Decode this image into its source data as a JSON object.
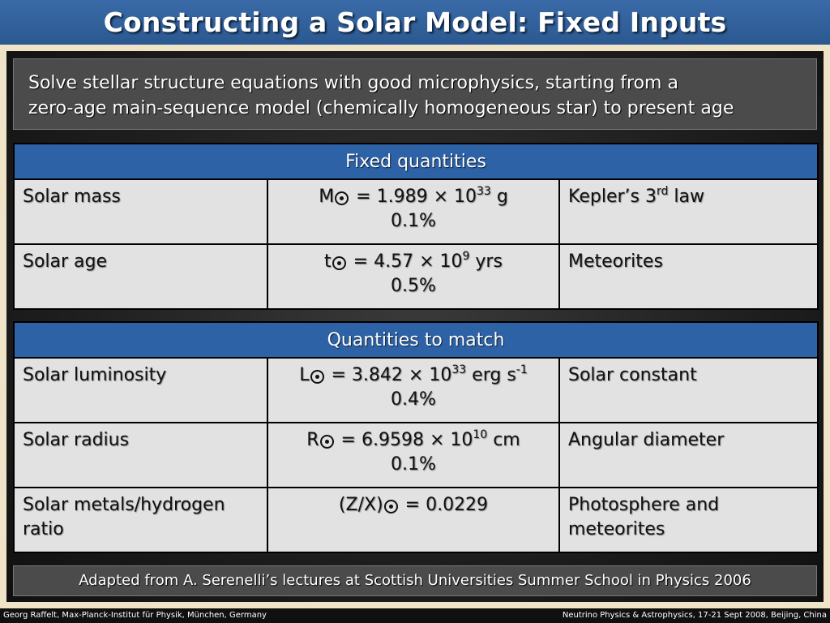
{
  "title": "Constructing a Solar Model: Fixed Inputs",
  "intro": {
    "line1": "Solve stellar structure equations with good microphysics, starting from a",
    "line2": "zero-age main-sequence model (chemically homogeneous star) to present age"
  },
  "fixed": {
    "header": "Fixed quantities",
    "rows": [
      {
        "name": "Solar mass",
        "symbol": "M",
        "eq": " = 1.989 × 10",
        "exp": "33",
        "unit": " g",
        "unit_exp": "",
        "uncertainty": "0.1%",
        "source": "Kepler’s 3",
        "source_sup": "rd",
        "source_tail": " law"
      },
      {
        "name": "Solar age",
        "symbol": "t",
        "eq": " = 4.57 × 10",
        "exp": "9",
        "unit": " yrs",
        "unit_exp": "",
        "uncertainty": "0.5%",
        "source": "Meteorites",
        "source_sup": "",
        "source_tail": ""
      }
    ]
  },
  "match": {
    "header": "Quantities to match",
    "rows": [
      {
        "name": "Solar luminosity",
        "symbol": "L",
        "eq": " = 3.842 × 10",
        "exp": "33",
        "unit": " erg s",
        "unit_exp": "-1",
        "uncertainty": "0.4%",
        "source": "Solar constant"
      },
      {
        "name": "Solar radius",
        "symbol": "R",
        "eq": " = 6.9598 × 10",
        "exp": "10",
        "unit": " cm",
        "unit_exp": "",
        "uncertainty": "0.1%",
        "source": "Angular diameter"
      },
      {
        "name": "Solar metals/hydrogen ratio",
        "symbol": "(Z/X)",
        "eq": " = 0.0229",
        "exp": "",
        "unit": "",
        "unit_exp": "",
        "uncertainty": "",
        "source": "Photosphere and meteorites"
      }
    ]
  },
  "note": "Adapted from A. Serenelli’s lectures at Scottish Universities Summer School in Physics 2006",
  "footer": {
    "left": "Georg Raffelt, Max-Planck-Institut für Physik, München, Germany",
    "right": "Neutrino Physics & Astrophysics, 17-21 Sept 2008, Beijing, China"
  }
}
